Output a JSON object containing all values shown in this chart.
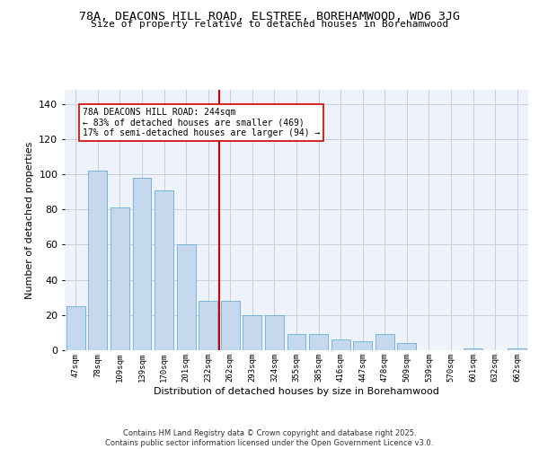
{
  "title_line1": "78A, DEACONS HILL ROAD, ELSTREE, BOREHAMWOOD, WD6 3JG",
  "title_line2": "Size of property relative to detached houses in Borehamwood",
  "xlabel": "Distribution of detached houses by size in Borehamwood",
  "ylabel": "Number of detached properties",
  "categories": [
    "47sqm",
    "78sqm",
    "109sqm",
    "139sqm",
    "170sqm",
    "201sqm",
    "232sqm",
    "262sqm",
    "293sqm",
    "324sqm",
    "355sqm",
    "385sqm",
    "416sqm",
    "447sqm",
    "478sqm",
    "509sqm",
    "539sqm",
    "570sqm",
    "601sqm",
    "632sqm",
    "662sqm"
  ],
  "values": [
    25,
    102,
    81,
    98,
    91,
    60,
    28,
    28,
    20,
    20,
    9,
    9,
    6,
    5,
    9,
    4,
    0,
    0,
    1,
    0,
    1
  ],
  "bar_color": "#c5d8ee",
  "bar_edge_color": "#6baed6",
  "vline_x": 6.5,
  "vline_color": "#cc0000",
  "annotation_text": "78A DEACONS HILL ROAD: 244sqm\n← 83% of detached houses are smaller (469)\n17% of semi-detached houses are larger (94) →",
  "annotation_box_color": "#ffffff",
  "annotation_box_edge_color": "#cc0000",
  "ylim": [
    0,
    148
  ],
  "yticks": [
    0,
    20,
    40,
    60,
    80,
    100,
    120,
    140
  ],
  "footer_text": "Contains HM Land Registry data © Crown copyright and database right 2025.\nContains public sector information licensed under the Open Government Licence v3.0.",
  "background_color": "#eef2fa",
  "grid_color": "#c8cde0",
  "fig_width": 6.0,
  "fig_height": 5.0
}
